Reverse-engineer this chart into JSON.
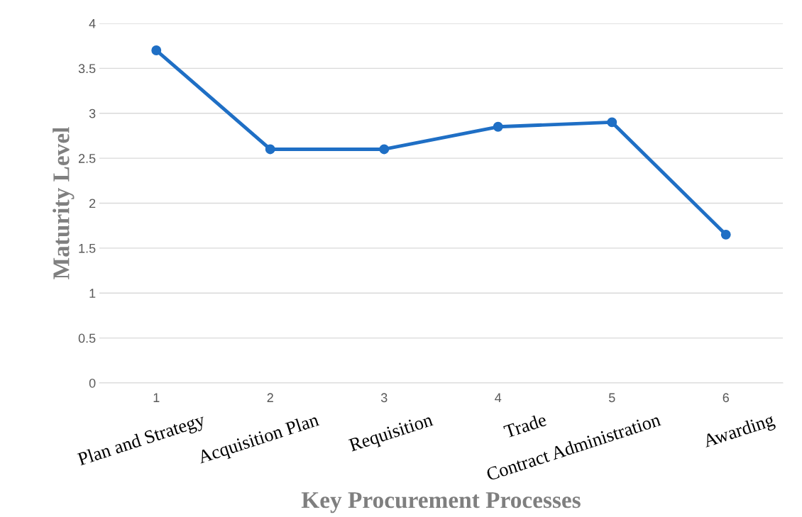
{
  "chart_data": {
    "type": "line",
    "categories": [
      "1",
      "2",
      "3",
      "4",
      "5",
      "6"
    ],
    "series": [
      {
        "color": "#1f6fc5",
        "values": [
          3.7,
          2.6,
          2.6,
          2.85,
          2.9,
          1.65
        ]
      }
    ],
    "ylim": [
      0,
      4
    ],
    "yticks": [
      0,
      0.5,
      1,
      1.5,
      2,
      2.5,
      3,
      3.5,
      4
    ],
    "xlabel": "Key Procurement Processes",
    "ylabel": "Maturity Level",
    "annotations": [
      "Plan and Strategy",
      "Acquisition Plan",
      "Requisition",
      "Trade",
      "Contract Administration",
      "Awarding"
    ],
    "grid": "y",
    "legend": false,
    "marker": "circle",
    "line_style": "solid"
  }
}
